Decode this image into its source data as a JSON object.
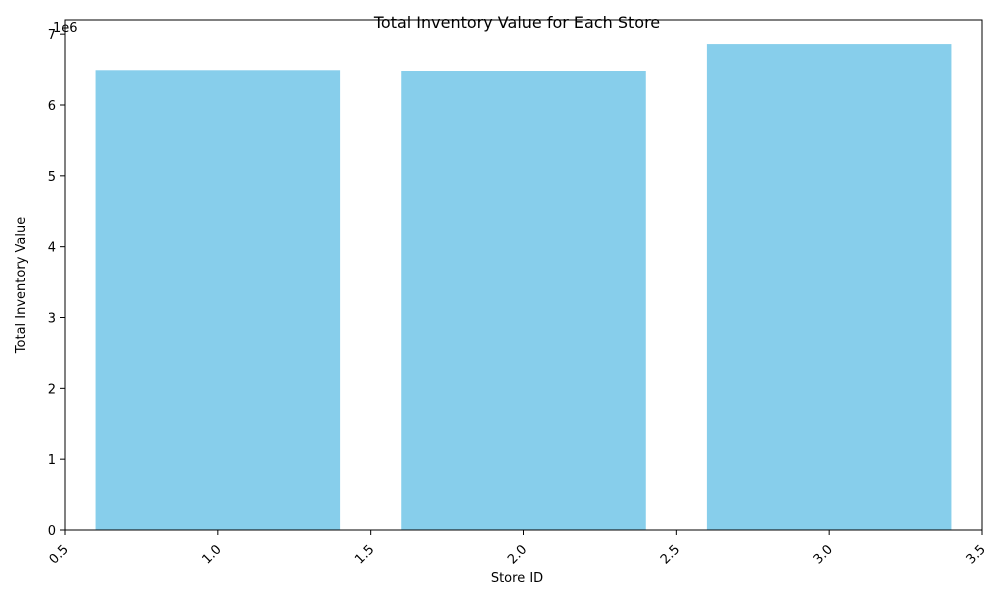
{
  "chart_data": {
    "type": "bar",
    "title": "Total Inventory Value for Each Store",
    "xlabel": "Store ID",
    "ylabel": "Total Inventory Value",
    "y_offset_label": "1e6",
    "color": "#87CEEB",
    "xlim": [
      0.5,
      3.5
    ],
    "ylim": [
      0,
      7200000
    ],
    "bar_width": 0.8,
    "x": [
      1,
      2,
      3
    ],
    "values": [
      6490000,
      6480000,
      6860000
    ],
    "x_ticks": [
      "0.5",
      "1.0",
      "1.5",
      "2.0",
      "2.5",
      "3.0",
      "3.5"
    ],
    "y_ticks": [
      "0",
      "1",
      "2",
      "3",
      "4",
      "5",
      "6",
      "7"
    ],
    "grid": false,
    "legend": "none"
  }
}
